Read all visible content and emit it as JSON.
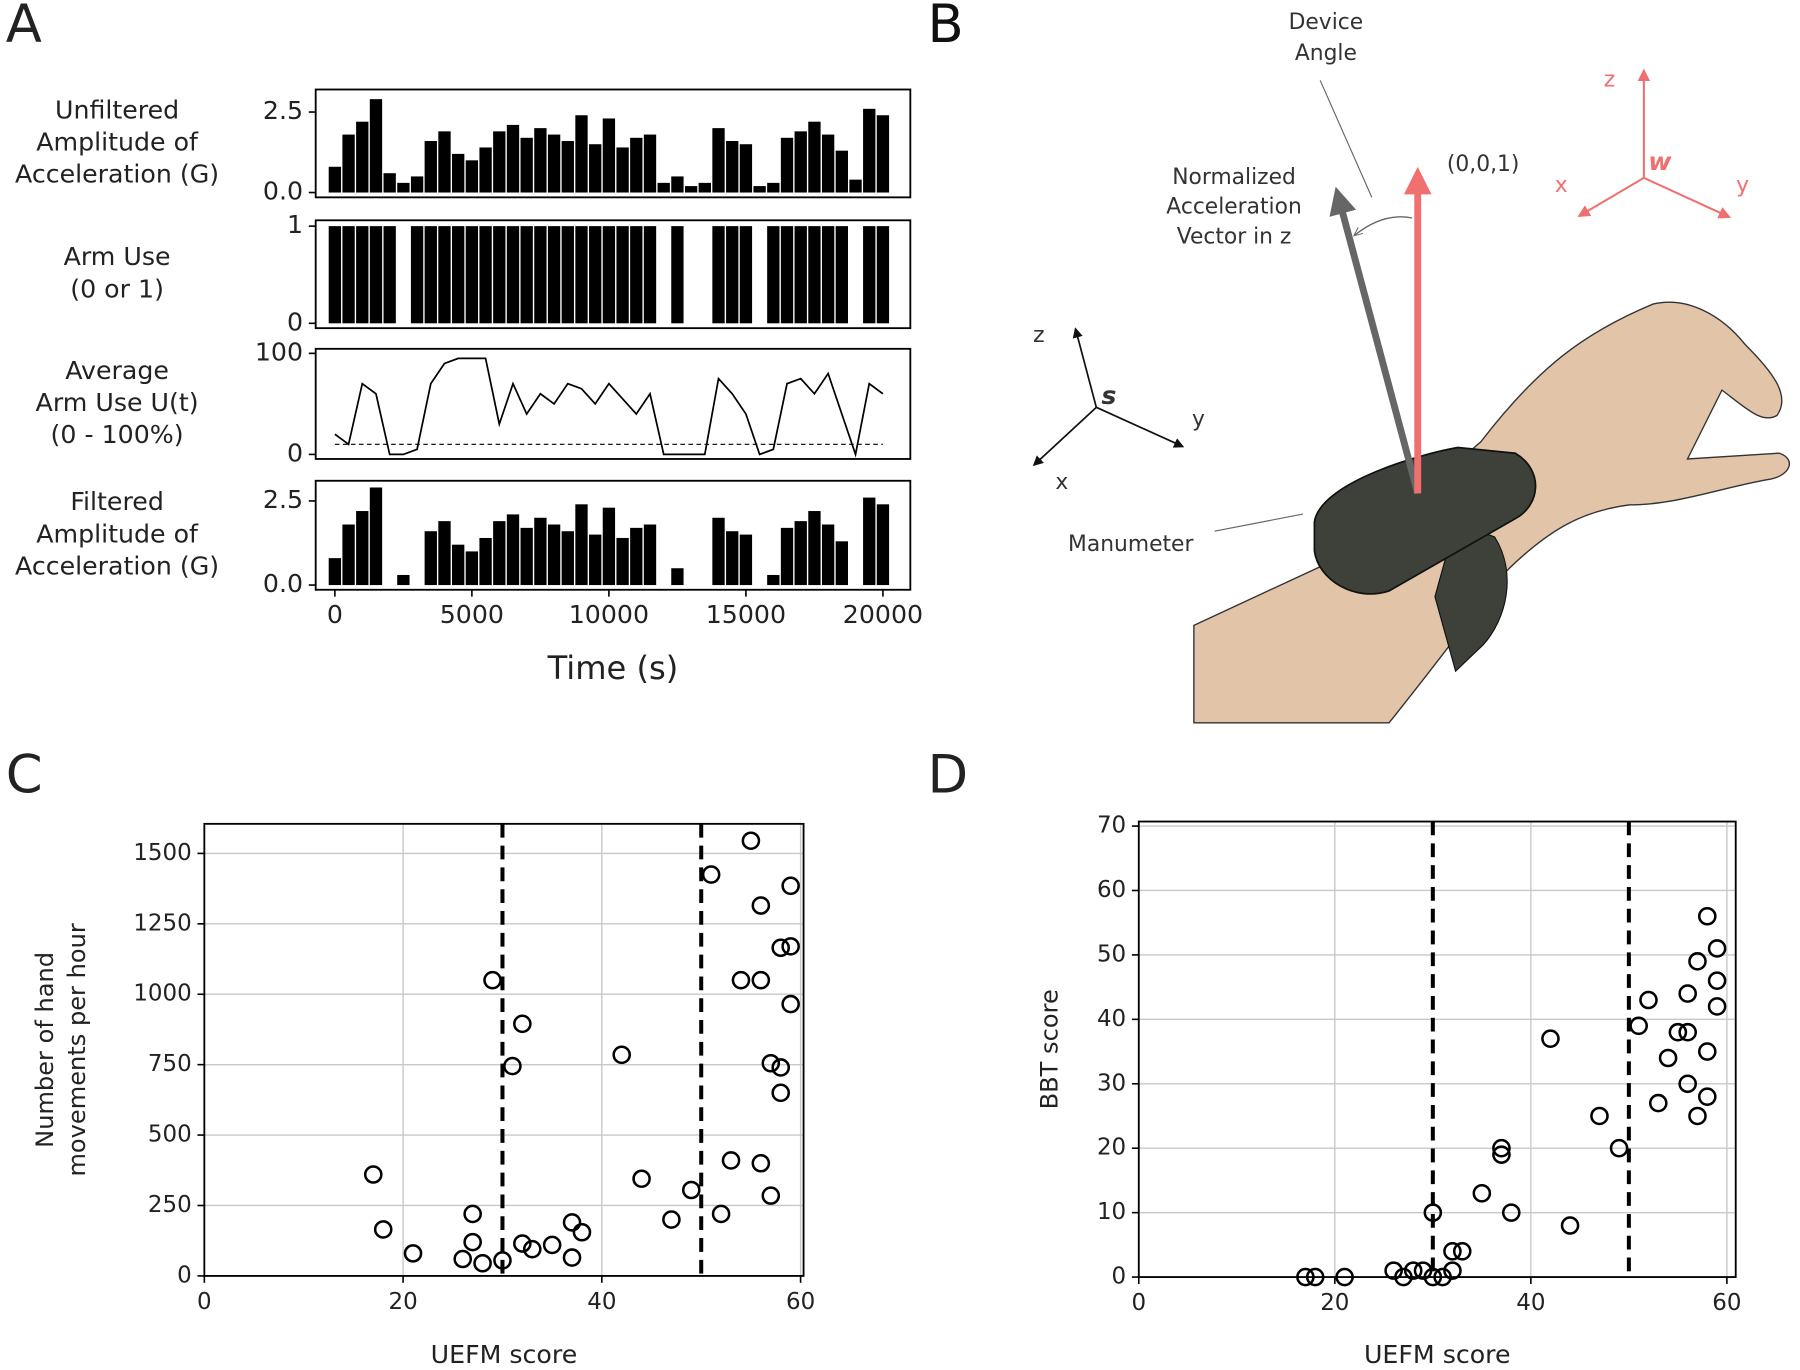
{
  "chart_data": [
    {
      "type": "bar",
      "panel_label": "A",
      "ylabel": [
        "Unfiltered",
        "Amplitude of",
        "Acceleration (G)"
      ],
      "color": "#000000",
      "x": [
        0,
        500,
        1000,
        1500,
        2000,
        2500,
        3000,
        3500,
        4000,
        4500,
        5000,
        5500,
        6000,
        6500,
        7000,
        7500,
        8000,
        8500,
        9000,
        9500,
        10000,
        10500,
        11000,
        11500,
        12000,
        12500,
        13000,
        13500,
        14000,
        14500,
        15000,
        15500,
        16000,
        16500,
        17000,
        17500,
        18000,
        18500,
        19000,
        19500,
        20000
      ],
      "values": [
        0.8,
        1.8,
        2.2,
        2.9,
        0.6,
        0.3,
        0.5,
        1.6,
        1.9,
        1.2,
        1.0,
        1.4,
        1.9,
        2.1,
        1.7,
        2.0,
        1.8,
        1.6,
        2.4,
        1.5,
        2.3,
        1.4,
        1.7,
        1.8,
        0.3,
        0.5,
        0.2,
        0.3,
        2.0,
        1.6,
        1.5,
        0.2,
        0.3,
        1.7,
        1.9,
        2.2,
        1.8,
        1.3,
        0.4,
        2.6,
        2.4
      ],
      "xlim": [
        -700,
        21000
      ],
      "ylim": [
        -0.15,
        3.2
      ],
      "yticks": [
        {
          "value": 0,
          "label": "0.0"
        },
        2.5
      ]
    },
    {
      "type": "bar",
      "ylabel": [
        "Arm Use",
        "(0 or 1)"
      ],
      "color": "#000000",
      "x": [
        0,
        500,
        1000,
        1500,
        2000,
        2500,
        3000,
        3500,
        4000,
        4500,
        5000,
        5500,
        6000,
        6500,
        7000,
        7500,
        8000,
        8500,
        9000,
        9500,
        10000,
        10500,
        11000,
        11500,
        12000,
        12500,
        13000,
        13500,
        14000,
        14500,
        15000,
        15500,
        16000,
        16500,
        17000,
        17500,
        18000,
        18500,
        19000,
        19500,
        20000
      ],
      "values": [
        1,
        1,
        1,
        1,
        1,
        0,
        1,
        1,
        1,
        1,
        1,
        1,
        1,
        1,
        1,
        1,
        1,
        1,
        1,
        1,
        1,
        1,
        1,
        1,
        0,
        1,
        0,
        0,
        1,
        1,
        1,
        0,
        1,
        1,
        1,
        1,
        1,
        1,
        0,
        1,
        1
      ],
      "xlim": [
        -700,
        21000
      ],
      "ylim": [
        -0.05,
        1.06
      ],
      "yticks": [
        0,
        1
      ]
    },
    {
      "type": "line",
      "ylabel": [
        "Average",
        "Arm Use U(t)",
        "(0 - 100%)"
      ],
      "color": "#000000",
      "threshold": 10,
      "x": [
        0,
        500,
        1000,
        1500,
        2000,
        2500,
        3000,
        3500,
        4000,
        4500,
        5000,
        5500,
        6000,
        6500,
        7000,
        7500,
        8000,
        8500,
        9000,
        9500,
        10000,
        10500,
        11000,
        11500,
        12000,
        12500,
        13000,
        13500,
        14000,
        14500,
        15000,
        15500,
        16000,
        16500,
        17000,
        17500,
        18000,
        18500,
        19000,
        19500,
        20000
      ],
      "values": [
        20,
        10,
        70,
        60,
        0,
        0,
        5,
        70,
        90,
        95,
        95,
        95,
        30,
        70,
        40,
        60,
        50,
        70,
        65,
        50,
        70,
        55,
        40,
        60,
        0,
        0,
        0,
        0,
        75,
        60,
        40,
        0,
        5,
        70,
        75,
        60,
        80,
        40,
        0,
        70,
        60
      ],
      "xlim": [
        -700,
        21000
      ],
      "ylim": [
        -4.5,
        104.5
      ],
      "yticks": [
        0,
        100
      ]
    },
    {
      "type": "bar",
      "ylabel": [
        "Filtered",
        "Amplitude of",
        "Acceleration (G)"
      ],
      "xlabel": "Time (s)",
      "color": "#000000",
      "x": [
        0,
        500,
        1000,
        1500,
        2000,
        2500,
        3000,
        3500,
        4000,
        4500,
        5000,
        5500,
        6000,
        6500,
        7000,
        7500,
        8000,
        8500,
        9000,
        9500,
        10000,
        10500,
        11000,
        11500,
        12000,
        12500,
        13000,
        13500,
        14000,
        14500,
        15000,
        15500,
        16000,
        16500,
        17000,
        17500,
        18000,
        18500,
        19000,
        19500,
        20000
      ],
      "values": [
        0.8,
        1.8,
        2.2,
        2.9,
        0,
        0.3,
        0,
        1.6,
        1.9,
        1.2,
        1.0,
        1.4,
        1.9,
        2.1,
        1.7,
        2.0,
        1.8,
        1.6,
        2.4,
        1.5,
        2.3,
        1.4,
        1.7,
        1.8,
        0,
        0.5,
        0,
        0,
        2.0,
        1.6,
        1.5,
        0,
        0.3,
        1.7,
        1.9,
        2.2,
        1.8,
        1.3,
        0,
        2.6,
        2.4
      ],
      "xlim": [
        -700,
        21000
      ],
      "ylim": [
        -0.14,
        3.1
      ],
      "yticks": [
        {
          "value": 0,
          "label": "0.0"
        },
        2.5
      ],
      "xticks": [
        0,
        5000,
        10000,
        15000,
        20000
      ]
    },
    {
      "type": "scatter",
      "panel_label": "C",
      "xlabel": "UEFM score",
      "ylabel": [
        "Number of hand",
        "movements per hour"
      ],
      "color": "#000000",
      "grid": true,
      "vlines": [
        30,
        50
      ],
      "x": [
        17,
        18,
        21,
        26,
        27,
        27,
        28,
        29,
        30,
        31,
        32,
        32,
        33,
        35,
        37,
        37,
        38,
        42,
        44,
        47,
        49,
        51,
        52,
        53,
        54,
        55,
        56,
        56,
        56,
        57,
        57,
        58,
        58,
        58,
        59,
        59,
        59
      ],
      "values": [
        360,
        165,
        80,
        60,
        120,
        220,
        45,
        1050,
        55,
        745,
        895,
        115,
        95,
        110,
        190,
        65,
        155,
        785,
        345,
        200,
        305,
        1425,
        220,
        410,
        1050,
        1545,
        1315,
        1050,
        400,
        755,
        285,
        1165,
        740,
        650,
        1385,
        1170,
        965
      ],
      "xlim": [
        0,
        60.3
      ],
      "ylim": [
        0,
        1605
      ],
      "xticks": [
        0,
        20,
        40,
        60
      ],
      "yticks": [
        0,
        250,
        500,
        750,
        1000,
        1250,
        1500
      ]
    },
    {
      "type": "scatter",
      "panel_label": "D",
      "xlabel": "UEFM score",
      "ylabel": [
        "BBT score"
      ],
      "color": "#000000",
      "grid": true,
      "vlines": [
        30,
        50
      ],
      "x": [
        17,
        18,
        21,
        26,
        27,
        28,
        29,
        30,
        30,
        31,
        32,
        32,
        33,
        35,
        37,
        37,
        38,
        42,
        44,
        47,
        49,
        51,
        52,
        53,
        54,
        55,
        56,
        56,
        56,
        57,
        57,
        58,
        58,
        58,
        59,
        59,
        59
      ],
      "values": [
        0,
        0,
        0,
        1,
        0,
        1,
        1,
        10,
        0,
        0,
        4,
        1,
        4,
        13,
        19,
        20,
        10,
        37,
        8,
        25,
        20,
        39,
        43,
        27,
        34,
        38,
        38,
        44,
        30,
        25,
        49,
        56,
        35,
        28,
        51,
        46,
        42
      ],
      "xlim": [
        0,
        60.9
      ],
      "ylim": [
        0,
        70.7
      ],
      "xticks": [
        0,
        20,
        40,
        60
      ],
      "yticks": [
        0,
        10,
        20,
        30,
        40,
        50,
        60,
        70
      ]
    }
  ],
  "diagram": {
    "panel_label": "B",
    "device_angle": [
      "Device",
      "Angle"
    ],
    "up_vector": "(0,0,1)",
    "normalized_vector": [
      "Normalized",
      "Acceleration",
      "Vector in z"
    ],
    "device": "Manumeter",
    "sensor_axes": {
      "origin": "s",
      "x": "x",
      "y": "y",
      "z": "z"
    },
    "world_axes": {
      "origin": "w",
      "x": "x",
      "y": "y",
      "z": "z"
    }
  }
}
